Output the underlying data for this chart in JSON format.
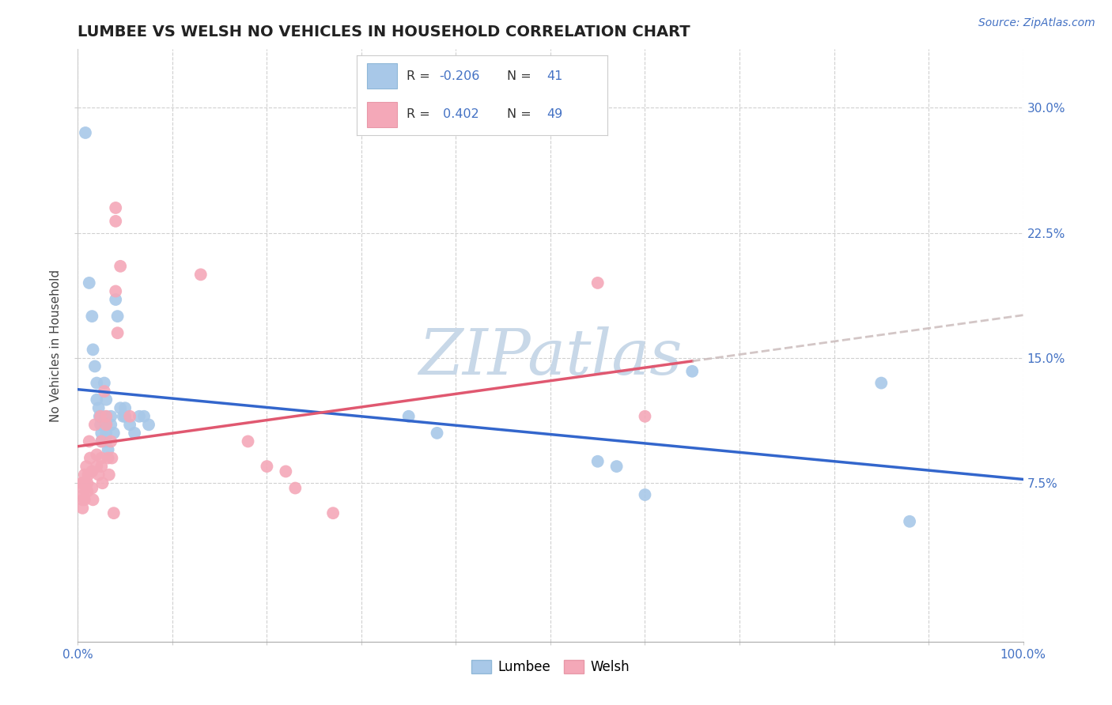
{
  "title": "LUMBEE VS WELSH NO VEHICLES IN HOUSEHOLD CORRELATION CHART",
  "source": "Source: ZipAtlas.com",
  "ylabel": "No Vehicles in Household",
  "xlim": [
    0.0,
    1.0
  ],
  "ylim": [
    -0.02,
    0.335
  ],
  "yticks": [
    0.075,
    0.15,
    0.225,
    0.3
  ],
  "yticklabels": [
    "7.5%",
    "15.0%",
    "22.5%",
    "30.0%"
  ],
  "lumbee_color": "#a8c8e8",
  "welsh_color": "#f4a8b8",
  "lumbee_line_color": "#3366cc",
  "welsh_line_color": "#e05870",
  "dashed_line_color": "#c8b8b8",
  "watermark": "ZIPatlas",
  "watermark_color": "#c8d8e8",
  "lumbee_points": [
    [
      0.008,
      0.285
    ],
    [
      0.012,
      0.195
    ],
    [
      0.015,
      0.175
    ],
    [
      0.016,
      0.155
    ],
    [
      0.018,
      0.145
    ],
    [
      0.02,
      0.135
    ],
    [
      0.02,
      0.125
    ],
    [
      0.022,
      0.12
    ],
    [
      0.023,
      0.115
    ],
    [
      0.024,
      0.11
    ],
    [
      0.025,
      0.105
    ],
    [
      0.025,
      0.1
    ],
    [
      0.028,
      0.135
    ],
    [
      0.03,
      0.125
    ],
    [
      0.03,
      0.115
    ],
    [
      0.03,
      0.11
    ],
    [
      0.03,
      0.105
    ],
    [
      0.03,
      0.1
    ],
    [
      0.032,
      0.095
    ],
    [
      0.035,
      0.115
    ],
    [
      0.035,
      0.11
    ],
    [
      0.038,
      0.105
    ],
    [
      0.04,
      0.185
    ],
    [
      0.042,
      0.175
    ],
    [
      0.045,
      0.12
    ],
    [
      0.048,
      0.115
    ],
    [
      0.05,
      0.12
    ],
    [
      0.05,
      0.115
    ],
    [
      0.055,
      0.11
    ],
    [
      0.06,
      0.105
    ],
    [
      0.065,
      0.115
    ],
    [
      0.07,
      0.115
    ],
    [
      0.075,
      0.11
    ],
    [
      0.35,
      0.115
    ],
    [
      0.38,
      0.105
    ],
    [
      0.55,
      0.088
    ],
    [
      0.57,
      0.085
    ],
    [
      0.6,
      0.068
    ],
    [
      0.65,
      0.142
    ],
    [
      0.85,
      0.135
    ],
    [
      0.88,
      0.052
    ]
  ],
  "welsh_points": [
    [
      0.004,
      0.075
    ],
    [
      0.005,
      0.072
    ],
    [
      0.005,
      0.065
    ],
    [
      0.005,
      0.06
    ],
    [
      0.006,
      0.075
    ],
    [
      0.006,
      0.068
    ],
    [
      0.007,
      0.08
    ],
    [
      0.007,
      0.065
    ],
    [
      0.008,
      0.075
    ],
    [
      0.009,
      0.085
    ],
    [
      0.01,
      0.075
    ],
    [
      0.01,
      0.07
    ],
    [
      0.011,
      0.08
    ],
    [
      0.012,
      0.1
    ],
    [
      0.013,
      0.09
    ],
    [
      0.015,
      0.082
    ],
    [
      0.015,
      0.072
    ],
    [
      0.016,
      0.065
    ],
    [
      0.018,
      0.11
    ],
    [
      0.02,
      0.092
    ],
    [
      0.02,
      0.085
    ],
    [
      0.022,
      0.08
    ],
    [
      0.024,
      0.115
    ],
    [
      0.025,
      0.1
    ],
    [
      0.025,
      0.09
    ],
    [
      0.025,
      0.085
    ],
    [
      0.026,
      0.075
    ],
    [
      0.028,
      0.13
    ],
    [
      0.03,
      0.115
    ],
    [
      0.03,
      0.11
    ],
    [
      0.032,
      0.09
    ],
    [
      0.033,
      0.08
    ],
    [
      0.035,
      0.1
    ],
    [
      0.036,
      0.09
    ],
    [
      0.038,
      0.057
    ],
    [
      0.04,
      0.24
    ],
    [
      0.04,
      0.232
    ],
    [
      0.04,
      0.19
    ],
    [
      0.042,
      0.165
    ],
    [
      0.045,
      0.205
    ],
    [
      0.055,
      0.115
    ],
    [
      0.13,
      0.2
    ],
    [
      0.18,
      0.1
    ],
    [
      0.2,
      0.085
    ],
    [
      0.22,
      0.082
    ],
    [
      0.23,
      0.072
    ],
    [
      0.27,
      0.057
    ],
    [
      0.55,
      0.195
    ],
    [
      0.6,
      0.115
    ]
  ]
}
